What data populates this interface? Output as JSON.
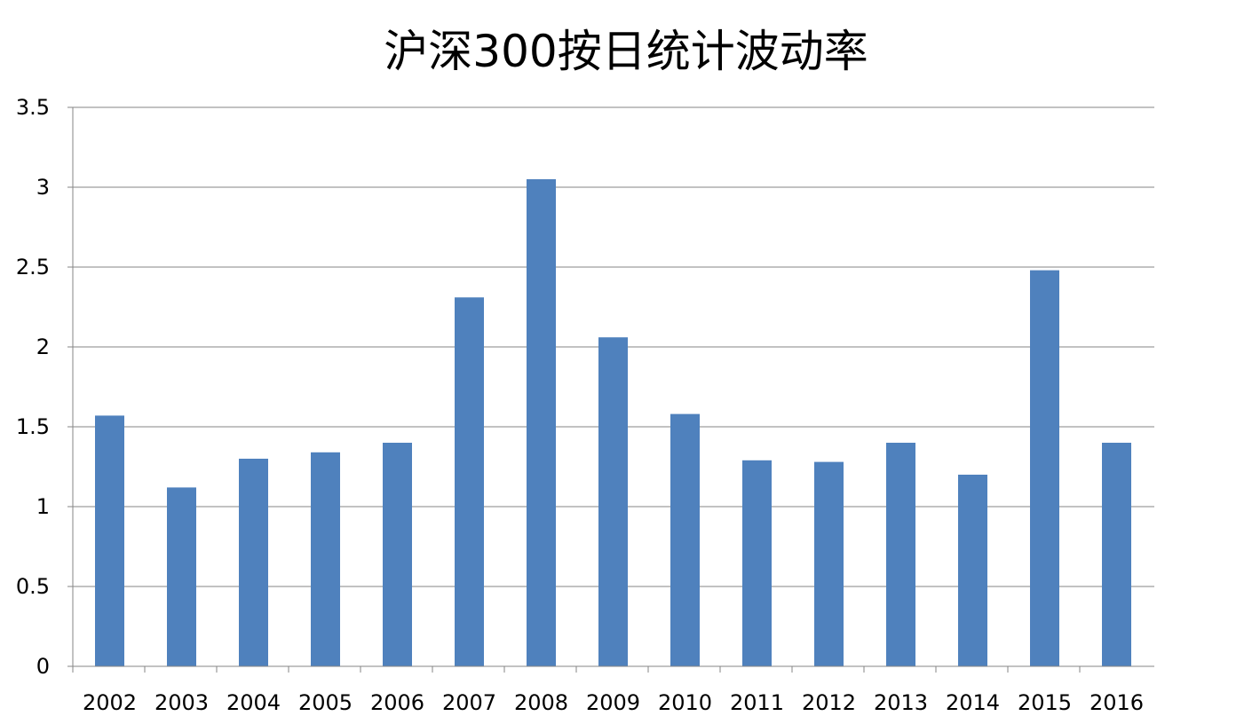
{
  "chart_data": {
    "type": "bar",
    "title": "沪深300按日统计波动率",
    "xlabel": "",
    "ylabel": "",
    "categories": [
      "2002",
      "2003",
      "2004",
      "2005",
      "2006",
      "2007",
      "2008",
      "2009",
      "2010",
      "2011",
      "2012",
      "2013",
      "2014",
      "2015",
      "2016"
    ],
    "values": [
      1.57,
      1.12,
      1.3,
      1.34,
      1.4,
      2.31,
      3.05,
      2.06,
      1.58,
      1.29,
      1.28,
      1.4,
      1.2,
      2.48,
      1.4
    ],
    "ylim": [
      0,
      3.5
    ],
    "yticks": [
      "0",
      "0.5",
      "1",
      "1.5",
      "2",
      "2.5",
      "3",
      "3.5"
    ],
    "grid": true,
    "legend": "none",
    "bar_color": "#4F81BD"
  }
}
